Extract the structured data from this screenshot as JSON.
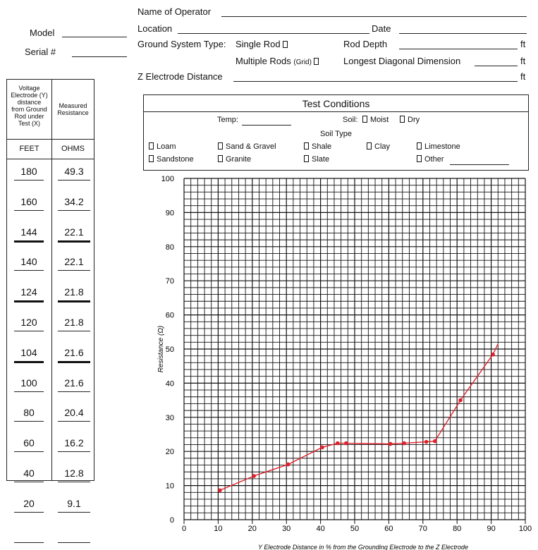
{
  "header": {
    "operator_label": "Name of Operator",
    "location_label": "Location",
    "date_label": "Date",
    "ground_system_label": "Ground System Type:",
    "single_rod_label": "Single Rod",
    "rod_depth_label": "Rod Depth",
    "ft_unit": "ft",
    "multiple_rods_label": "Multiple Rods",
    "grid_label": "(Grid)",
    "longest_diag_label": "Longest Diagonal Dimension",
    "z_electrode_label": "Z Electrode Distance",
    "model_label": "Model",
    "serial_label": "Serial #"
  },
  "table": {
    "col1_header_lines": [
      "Voltage",
      "Electrode (Y)",
      "distance",
      "from Ground",
      "Rod under",
      "Test (X)"
    ],
    "col2_header_lines": [
      "Measured",
      "Resistance"
    ],
    "col1_unit": "FEET",
    "col2_unit": "OHMS",
    "rows": [
      {
        "feet": "180",
        "ohms": "49.3",
        "bold": false
      },
      {
        "feet": "160",
        "ohms": "34.2",
        "bold": false
      },
      {
        "feet": "144",
        "ohms": "22.1",
        "bold": true
      },
      {
        "feet": "140",
        "ohms": "22.1",
        "bold": false
      },
      {
        "feet": "124",
        "ohms": "21.8",
        "bold": true
      },
      {
        "feet": "120",
        "ohms": "21.8",
        "bold": false
      },
      {
        "feet": "104",
        "ohms": "21.6",
        "bold": true
      },
      {
        "feet": "100",
        "ohms": "21.6",
        "bold": false
      },
      {
        "feet": "80",
        "ohms": "20.4",
        "bold": false
      },
      {
        "feet": "60",
        "ohms": "16.2",
        "bold": false
      },
      {
        "feet": "40",
        "ohms": "12.8",
        "bold": false
      },
      {
        "feet": "20",
        "ohms": "9.1",
        "bold": false
      },
      {
        "feet": "",
        "ohms": "",
        "bold": false
      }
    ]
  },
  "test_conditions": {
    "title": "Test Conditions",
    "temp_label": "Temp:",
    "soil_label": "Soil:",
    "moist_label": "Moist",
    "dry_label": "Dry",
    "soil_type_label": "Soil Type",
    "loam": "Loam",
    "sand_gravel": "Sand & Gravel",
    "shale": "Shale",
    "clay": "Clay",
    "limestone": "Limestone",
    "sandstone": "Sandstone",
    "granite": "Granite",
    "slate": "Slate",
    "other": "Other"
  },
  "chart_data": {
    "type": "line",
    "xlabel": "Y Electrode Distance in % from the Grounding Electrode to the Z Electrode",
    "ylabel": "Resistance (Ω)",
    "xlim": [
      0,
      100
    ],
    "ylim": [
      0,
      100
    ],
    "x_ticks": [
      0,
      10,
      20,
      30,
      40,
      50,
      60,
      70,
      80,
      90,
      100
    ],
    "y_ticks": [
      0,
      10,
      20,
      30,
      40,
      50,
      60,
      70,
      80,
      90,
      100
    ],
    "grid": true,
    "series": [
      {
        "color": "#e0202a",
        "points": [
          {
            "x": 10.5,
            "y": 8.6
          },
          {
            "x": 20.5,
            "y": 12.8
          },
          {
            "x": 30.5,
            "y": 16.2
          },
          {
            "x": 40.5,
            "y": 21.2
          },
          {
            "x": 45,
            "y": 22.4
          },
          {
            "x": 47.5,
            "y": 22.4
          },
          {
            "x": 60.5,
            "y": 22.2
          },
          {
            "x": 64.5,
            "y": 22.4
          },
          {
            "x": 71,
            "y": 22.8
          },
          {
            "x": 73.5,
            "y": 23.0
          },
          {
            "x": 81,
            "y": 35.0
          },
          {
            "x": 90.5,
            "y": 48.4
          }
        ],
        "line_end": {
          "x": 92,
          "y": 51.5
        }
      }
    ]
  }
}
